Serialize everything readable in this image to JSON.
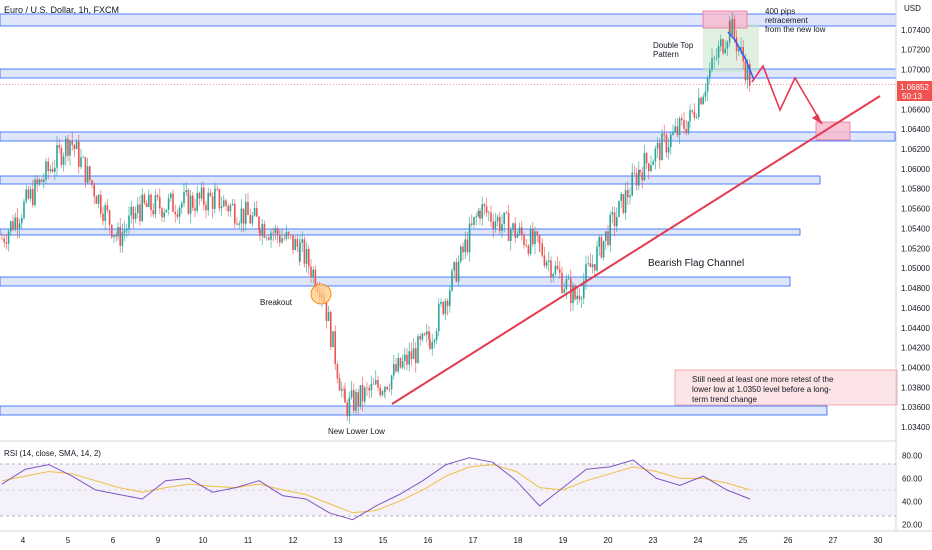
{
  "header": {
    "symbol_title": "Euro / U.S. Dollar, 1h, FXCM"
  },
  "price_axis": {
    "currency": "USD",
    "ticks": [
      "1.07400",
      "1.07200",
      "1.07000",
      "1.06800",
      "1.06600",
      "1.06400",
      "1.06200",
      "1.06000",
      "1.05800",
      "1.05600",
      "1.05400",
      "1.05200",
      "1.05000",
      "1.04800",
      "1.04600",
      "1.04400",
      "1.04200",
      "1.04000",
      "1.03800",
      "1.03600",
      "1.03400"
    ],
    "last_price": "1.06852",
    "countdown": "50:13"
  },
  "time_axis": {
    "ticks": [
      "4",
      "5",
      "6",
      "9",
      "10",
      "11",
      "12",
      "13",
      "15",
      "16",
      "17",
      "18",
      "19",
      "20",
      "23",
      "24",
      "25",
      "26",
      "27",
      "30"
    ]
  },
  "rsi": {
    "title": "RSI (14, close, SMA, 14, 2)",
    "ticks": [
      "80.00",
      "60.00",
      "40.00",
      "20.00"
    ]
  },
  "annotations": {
    "pips_note": [
      "400 pips",
      "retracement",
      "from the new low"
    ],
    "double_top": [
      "Double Top",
      "Pattern"
    ],
    "breakout": "Breakout",
    "new_lower_low": "New Lower Low",
    "bearish_flag": "Bearish Flag Channel",
    "retest_note": [
      "Still need at least one more retest of the",
      "lower low  at 1.0350 level before a long-",
      "term trend change"
    ]
  },
  "colors": {
    "up": "#26a69a",
    "down": "#ef5350",
    "zone_fill": "#c9d6f5",
    "zone_stroke": "#2962ff",
    "trendline": "#e53950",
    "rsi_line": "#7e57c2",
    "rsi_sma": "#f0c040",
    "price_tag": "#ef5350"
  },
  "chart_data": [
    {
      "type": "candlestick",
      "title": "Euro / U.S. Dollar, 1h, FXCM",
      "ylabel": "USD",
      "ylim": [
        1.033,
        1.076
      ],
      "key_points": [
        {
          "x": "4",
          "price": 1.053
        },
        {
          "x": "5",
          "price": 1.063
        },
        {
          "x": "6",
          "price": 1.053
        },
        {
          "x": "9",
          "price": 1.056
        },
        {
          "x": "10",
          "price": 1.057
        },
        {
          "x": "11",
          "price": 1.0545
        },
        {
          "x": "12",
          "price": 1.052
        },
        {
          "x": "12",
          "price": 1.048
        },
        {
          "x": "13",
          "price": 1.036
        },
        {
          "x": "15",
          "price": 1.0385
        },
        {
          "x": "16",
          "price": 1.043
        },
        {
          "x": "17",
          "price": 1.056
        },
        {
          "x": "18",
          "price": 1.052
        },
        {
          "x": "19",
          "price": 1.047
        },
        {
          "x": "20",
          "price": 1.06
        },
        {
          "x": "23",
          "price": 1.065
        },
        {
          "x": "24",
          "price": 1.0745
        },
        {
          "x": "25",
          "price": 1.0685
        }
      ],
      "support_resistance_levels": [
        1.075,
        1.07,
        1.063,
        1.059,
        1.054,
        1.049,
        1.0355
      ],
      "last_price": 1.06852
    },
    {
      "type": "line",
      "title": "RSI (14, close, SMA, 14, 2)",
      "ylim": [
        20,
        80
      ],
      "series": [
        {
          "name": "RSI",
          "values": [
            55,
            68,
            72,
            62,
            50,
            46,
            42,
            58,
            60,
            48,
            52,
            58,
            45,
            42,
            30,
            24,
            36,
            46,
            58,
            72,
            78,
            74,
            58,
            36,
            52,
            68,
            70,
            76,
            60,
            54,
            62,
            50,
            42
          ]
        },
        {
          "name": "SMA",
          "values": [
            58,
            62,
            66,
            64,
            58,
            52,
            48,
            52,
            55,
            53,
            52,
            55,
            50,
            46,
            38,
            30,
            32,
            40,
            50,
            62,
            70,
            72,
            66,
            52,
            50,
            58,
            64,
            70,
            66,
            60,
            60,
            56,
            50
          ]
        }
      ],
      "bands": [
        70,
        30
      ]
    }
  ]
}
